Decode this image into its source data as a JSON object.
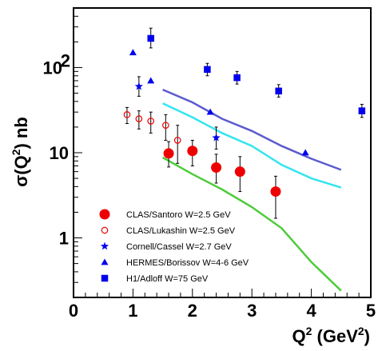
{
  "chart_data": {
    "type": "scatter",
    "title": "",
    "xlabel": {
      "main": "Q",
      "sup": "2",
      "unit_open": " (GeV",
      "unit_sup": "2",
      "unit_close": ")"
    },
    "ylabel": {
      "pre": "σ(Q",
      "sup": "2",
      "post": ") nb"
    },
    "xlim": [
      0,
      5
    ],
    "ylim": [
      0.2,
      500
    ],
    "yscale": "log",
    "x_ticks": [
      {
        "value": 0,
        "label": "0"
      },
      {
        "value": 1,
        "label": "1"
      },
      {
        "value": 2,
        "label": "2"
      },
      {
        "value": 3,
        "label": "3"
      },
      {
        "value": 4,
        "label": "4"
      },
      {
        "value": 5,
        "label": "5"
      }
    ],
    "y_ticks": [
      {
        "value": 1,
        "label": "1"
      },
      {
        "value": 10,
        "label": "10"
      },
      {
        "value": 100,
        "label": "10",
        "sup": "2"
      }
    ],
    "legend_position": "bottom-left",
    "series": [
      {
        "name": "CLAS/Santoro W=2.5 GeV",
        "marker": "filled-circle",
        "color": "#ee0000",
        "points": [
          {
            "x": 1.6,
            "y": 9.8,
            "lo": 6.8,
            "hi": 13.5
          },
          {
            "x": 2.0,
            "y": 10.5,
            "lo": 7.0,
            "hi": 14.0
          },
          {
            "x": 2.4,
            "y": 6.7,
            "lo": 4.4,
            "hi": 9.6
          },
          {
            "x": 2.8,
            "y": 6.0,
            "lo": 3.5,
            "hi": 9.0
          },
          {
            "x": 3.4,
            "y": 3.5,
            "lo": 1.7,
            "hi": 5.3
          }
        ]
      },
      {
        "name": "CLAS/Lukashin W=2.5 GeV",
        "marker": "open-circle",
        "color": "#ee0000",
        "points": [
          {
            "x": 0.9,
            "y": 28,
            "lo": 22,
            "hi": 34
          },
          {
            "x": 1.1,
            "y": 25,
            "lo": 19,
            "hi": 31
          },
          {
            "x": 1.3,
            "y": 23.5,
            "lo": 17,
            "hi": 30
          },
          {
            "x": 1.55,
            "y": 21,
            "lo": 14,
            "hi": 28
          },
          {
            "x": 1.75,
            "y": 14,
            "lo": 7.5,
            "hi": 21
          }
        ]
      },
      {
        "name": "Cornell/Cassel W=2.7 GeV",
        "marker": "star",
        "color": "#0000ee",
        "points": [
          {
            "x": 1.1,
            "y": 60,
            "lo": 46,
            "hi": 78
          },
          {
            "x": 2.4,
            "y": 15,
            "lo": 11,
            "hi": 20
          }
        ]
      },
      {
        "name": "HERMES/Borissov W=4-6 GeV",
        "marker": "filled-triangle",
        "color": "#0000ee",
        "points": [
          {
            "x": 1.0,
            "y": 150
          },
          {
            "x": 1.3,
            "y": 70
          },
          {
            "x": 2.3,
            "y": 30
          },
          {
            "x": 3.9,
            "y": 10
          }
        ]
      },
      {
        "name": "H1/Adloff W=75 GeV",
        "marker": "filled-square",
        "color": "#0000ee",
        "points": [
          {
            "x": 1.3,
            "y": 220,
            "lo": 170,
            "hi": 290
          },
          {
            "x": 2.25,
            "y": 95,
            "lo": 80,
            "hi": 112
          },
          {
            "x": 2.75,
            "y": 76,
            "lo": 64,
            "hi": 90
          },
          {
            "x": 3.45,
            "y": 53,
            "lo": 45,
            "hi": 63
          },
          {
            "x": 4.85,
            "y": 31,
            "lo": 26,
            "hi": 37
          }
        ]
      }
    ],
    "curves": [
      {
        "color": "#5b5bcf",
        "points": [
          [
            1.5,
            55
          ],
          [
            2.0,
            39
          ],
          [
            2.5,
            25
          ],
          [
            3.0,
            18
          ],
          [
            3.5,
            12
          ],
          [
            4.0,
            8.5
          ],
          [
            4.5,
            6.3
          ]
        ]
      },
      {
        "color": "#33e5f0",
        "points": [
          [
            1.5,
            38
          ],
          [
            2.0,
            26
          ],
          [
            2.5,
            17
          ],
          [
            3.0,
            12
          ],
          [
            3.5,
            7.2
          ],
          [
            4.0,
            5.0
          ],
          [
            4.5,
            3.9
          ]
        ]
      },
      {
        "color": "#4dcc3a",
        "points": [
          [
            1.5,
            8.8
          ],
          [
            2.0,
            5.6
          ],
          [
            2.5,
            3.7
          ],
          [
            3.0,
            2.3
          ],
          [
            3.5,
            1.3
          ],
          [
            4.0,
            0.52
          ],
          [
            4.5,
            0.24
          ]
        ]
      }
    ]
  }
}
